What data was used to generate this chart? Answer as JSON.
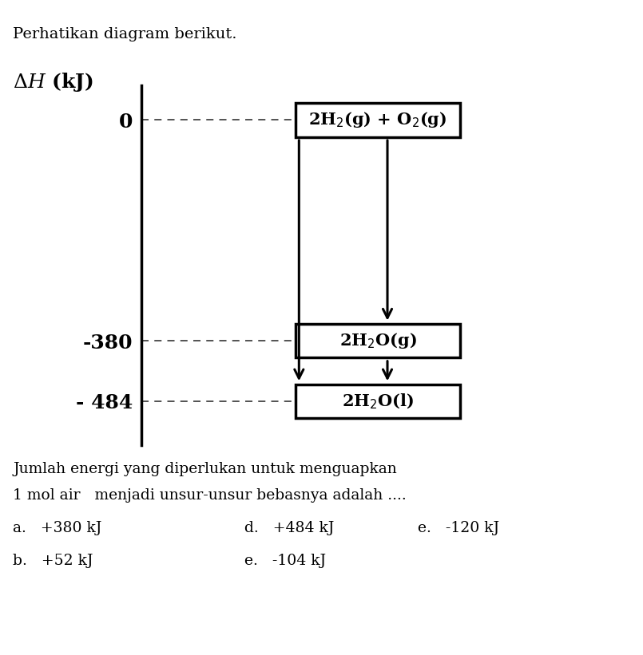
{
  "title": "Perhatikan diagram berikut.",
  "ylabel_line1": "ΔH (kJ)",
  "tick_labels": [
    "0",
    "-380",
    "- 484"
  ],
  "tick_values": [
    0,
    -380,
    -484
  ],
  "box_texts": {
    "zero": "2H$_2$(g) + O$_2$(g)",
    "gas": "2H$_2$O(g)",
    "liquid": "2H$_2$O(l)"
  },
  "question_line1": "Jumlah energi yang diperlukan untuk menguapkan",
  "question_line2": "1 mol air   menjadi unsur-unsur bebasnya adalah ....",
  "opt_a_label": "a.",
  "opt_a_text": "+380 kJ",
  "opt_b_label": "b.",
  "opt_b_text": "+52 kJ",
  "opt_d_label": "d.",
  "opt_d_text": "+484 kJ",
  "opt_e1_label": "e.",
  "opt_e1_text": "-120 kJ",
  "opt_e2_label": "e.",
  "opt_e2_text": "-104 kJ",
  "bg_color": "#ffffff",
  "text_color": "#000000",
  "line_color": "#000000",
  "dash_color": "#444444",
  "ylim_top": 60,
  "ylim_bottom": -560,
  "xlim_left": 0,
  "xlim_right": 10
}
